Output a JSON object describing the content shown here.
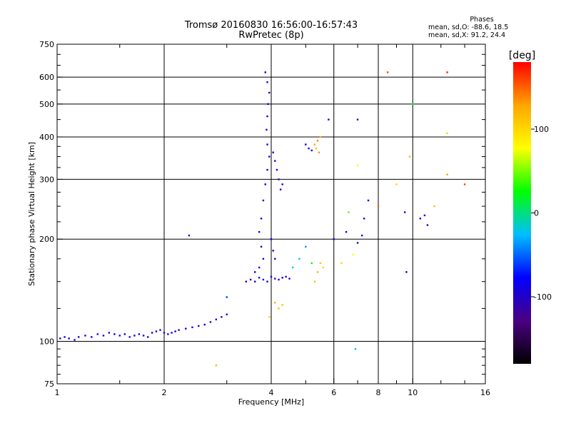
{
  "chart_data": {
    "type": "scatter",
    "title": "Tromsø 20160830 16:56:00-16:57:43",
    "subtitle": "RwPretec (8p)",
    "xlabel": "Frequency [MHz]",
    "ylabel": "Stationary phase Virtual Height [km]",
    "x_scale": "log",
    "y_scale": "log",
    "xlim": [
      1,
      16
    ],
    "ylim": [
      75,
      750
    ],
    "x_ticks": [
      {
        "value": 1,
        "label": "1"
      },
      {
        "value": 2,
        "label": "2"
      },
      {
        "value": 4,
        "label": "4"
      },
      {
        "value": 6,
        "label": "6"
      },
      {
        "value": 8,
        "label": "8"
      },
      {
        "value": 10,
        "label": "10"
      },
      {
        "value": 16,
        "label": "16"
      }
    ],
    "x_major_grid": [
      2,
      4,
      6,
      8,
      10
    ],
    "y_ticks": [
      {
        "value": 75,
        "label": "75"
      },
      {
        "value": 100,
        "label": "100"
      },
      {
        "value": 200,
        "label": "200"
      },
      {
        "value": 300,
        "label": "300"
      },
      {
        "value": 400,
        "label": "400"
      },
      {
        "value": 500,
        "label": "500"
      },
      {
        "value": 600,
        "label": "600"
      },
      {
        "value": 750,
        "label": "750"
      }
    ],
    "y_major_grid": [
      100,
      200,
      300,
      400,
      500,
      600
    ],
    "grid": true,
    "phase_stats": {
      "header": "Phases",
      "o_line": "mean, sd,O: -88.6, 18.5",
      "x_line": "mean, sd,X:  91.2, 24.4"
    },
    "colorbar": {
      "label": "[deg]",
      "range": [
        -180,
        180
      ],
      "ticks": [
        {
          "value": 100,
          "label": "100"
        },
        {
          "value": 0,
          "label": "0"
        },
        {
          "value": -100,
          "label": "-100"
        }
      ],
      "colors": [
        "#000000",
        "#4b0082",
        "#0000ff",
        "#00bfff",
        "#00ff00",
        "#ffff00",
        "#ffa500",
        "#ff0000"
      ]
    },
    "series": [
      {
        "points": [
          [
            1.02,
            102,
            -90
          ],
          [
            1.05,
            103,
            -100
          ],
          [
            1.08,
            102,
            -85
          ],
          [
            1.12,
            101,
            -95
          ],
          [
            1.15,
            103,
            -90
          ],
          [
            1.2,
            104,
            -100
          ],
          [
            1.25,
            103,
            -80
          ],
          [
            1.3,
            105,
            -95
          ],
          [
            1.35,
            104,
            -90
          ],
          [
            1.4,
            106,
            -100
          ],
          [
            1.45,
            105,
            -85
          ],
          [
            1.5,
            104,
            -95
          ],
          [
            1.55,
            105,
            -90
          ],
          [
            1.6,
            103,
            -100
          ],
          [
            1.65,
            104,
            -80
          ],
          [
            1.7,
            105,
            -95
          ],
          [
            1.75,
            104,
            -90
          ],
          [
            1.8,
            103,
            -100
          ],
          [
            1.85,
            106,
            -85
          ],
          [
            1.9,
            107,
            -95
          ],
          [
            1.95,
            108,
            -90
          ],
          [
            2.0,
            106,
            -100
          ],
          [
            2.05,
            105,
            -85
          ],
          [
            2.1,
            106,
            -95
          ],
          [
            2.15,
            107,
            -90
          ],
          [
            2.2,
            108,
            -100
          ],
          [
            2.3,
            109,
            -80
          ],
          [
            2.4,
            110,
            -95
          ],
          [
            2.5,
            111,
            -90
          ],
          [
            2.6,
            112,
            -85
          ],
          [
            2.7,
            114,
            -95
          ],
          [
            2.8,
            116,
            -90
          ],
          [
            2.9,
            118,
            -100
          ],
          [
            3.0,
            120,
            -85
          ],
          [
            3.4,
            150,
            -95
          ],
          [
            3.5,
            152,
            -90
          ],
          [
            3.6,
            150,
            -100
          ],
          [
            3.7,
            154,
            -85
          ],
          [
            3.8,
            152,
            -95
          ],
          [
            3.9,
            150,
            -90
          ],
          [
            4.0,
            155,
            -100
          ],
          [
            4.1,
            153,
            -85
          ],
          [
            4.2,
            152,
            -95
          ],
          [
            4.3,
            154,
            -90
          ],
          [
            4.4,
            155,
            -100
          ],
          [
            4.5,
            153,
            -85
          ],
          [
            3.85,
            620,
            -95
          ],
          [
            3.9,
            580,
            -90
          ],
          [
            3.95,
            540,
            -100
          ],
          [
            3.92,
            500,
            -85
          ],
          [
            3.9,
            460,
            -95
          ],
          [
            3.88,
            420,
            -90
          ],
          [
            3.9,
            380,
            -100
          ],
          [
            3.95,
            350,
            -85
          ],
          [
            3.9,
            320,
            -95
          ],
          [
            3.85,
            290,
            -90
          ],
          [
            3.8,
            260,
            -100
          ],
          [
            3.75,
            230,
            -85
          ],
          [
            3.7,
            210,
            -95
          ],
          [
            3.75,
            190,
            -90
          ],
          [
            3.8,
            175,
            -100
          ],
          [
            3.7,
            165,
            -85
          ],
          [
            3.6,
            160,
            -95
          ],
          [
            4.05,
            360,
            -90
          ],
          [
            4.1,
            340,
            -100
          ],
          [
            4.15,
            320,
            -85
          ],
          [
            4.2,
            300,
            -95
          ],
          [
            4.25,
            280,
            -90
          ],
          [
            4.3,
            290,
            -100
          ],
          [
            4.0,
            200,
            -85
          ],
          [
            4.05,
            185,
            -95
          ],
          [
            4.1,
            175,
            -90
          ],
          [
            5.0,
            380,
            -90
          ],
          [
            5.1,
            370,
            -85
          ],
          [
            5.2,
            365,
            -100
          ],
          [
            5.3,
            380,
            130
          ],
          [
            5.4,
            390,
            140
          ],
          [
            5.5,
            400,
            120
          ],
          [
            5.35,
            370,
            110
          ],
          [
            5.45,
            360,
            135
          ],
          [
            5.5,
            170,
            110
          ],
          [
            5.4,
            160,
            120
          ],
          [
            5.3,
            150,
            115
          ],
          [
            5.6,
            165,
            100
          ],
          [
            4.1,
            130,
            120
          ],
          [
            4.2,
            125,
            110
          ],
          [
            3.95,
            118,
            100
          ],
          [
            4.3,
            128,
            115
          ],
          [
            4.8,
            175,
            -20
          ],
          [
            4.6,
            165,
            0
          ],
          [
            5.0,
            190,
            -40
          ],
          [
            5.2,
            170,
            20
          ],
          [
            6.0,
            200,
            -95
          ],
          [
            6.5,
            210,
            -90
          ],
          [
            7.0,
            195,
            -100
          ],
          [
            7.2,
            205,
            -85
          ],
          [
            7.5,
            260,
            -90
          ],
          [
            7.3,
            230,
            -95
          ],
          [
            6.8,
            180,
            80
          ],
          [
            6.3,
            170,
            100
          ],
          [
            6.6,
            240,
            40
          ],
          [
            9.5,
            240,
            -95
          ],
          [
            10.5,
            230,
            -90
          ],
          [
            11.0,
            220,
            -100
          ],
          [
            10.8,
            235,
            -85
          ],
          [
            9.6,
            160,
            -80
          ],
          [
            11.5,
            250,
            110
          ],
          [
            12.5,
            310,
            130
          ],
          [
            12.5,
            410,
            60
          ],
          [
            12.5,
            620,
            170
          ],
          [
            9.8,
            350,
            120
          ],
          [
            9.0,
            290,
            100
          ],
          [
            8.5,
            620,
            160
          ],
          [
            7.0,
            450,
            -100
          ],
          [
            5.8,
            450,
            -90
          ],
          [
            10.0,
            500,
            10
          ],
          [
            7.0,
            330,
            80
          ],
          [
            8.0,
            250,
            150
          ],
          [
            14.0,
            290,
            160
          ],
          [
            6.9,
            95,
            -20
          ],
          [
            2.8,
            85,
            120
          ],
          [
            2.35,
            205,
            -100
          ],
          [
            3.0,
            135,
            -60
          ]
        ]
      }
    ]
  }
}
